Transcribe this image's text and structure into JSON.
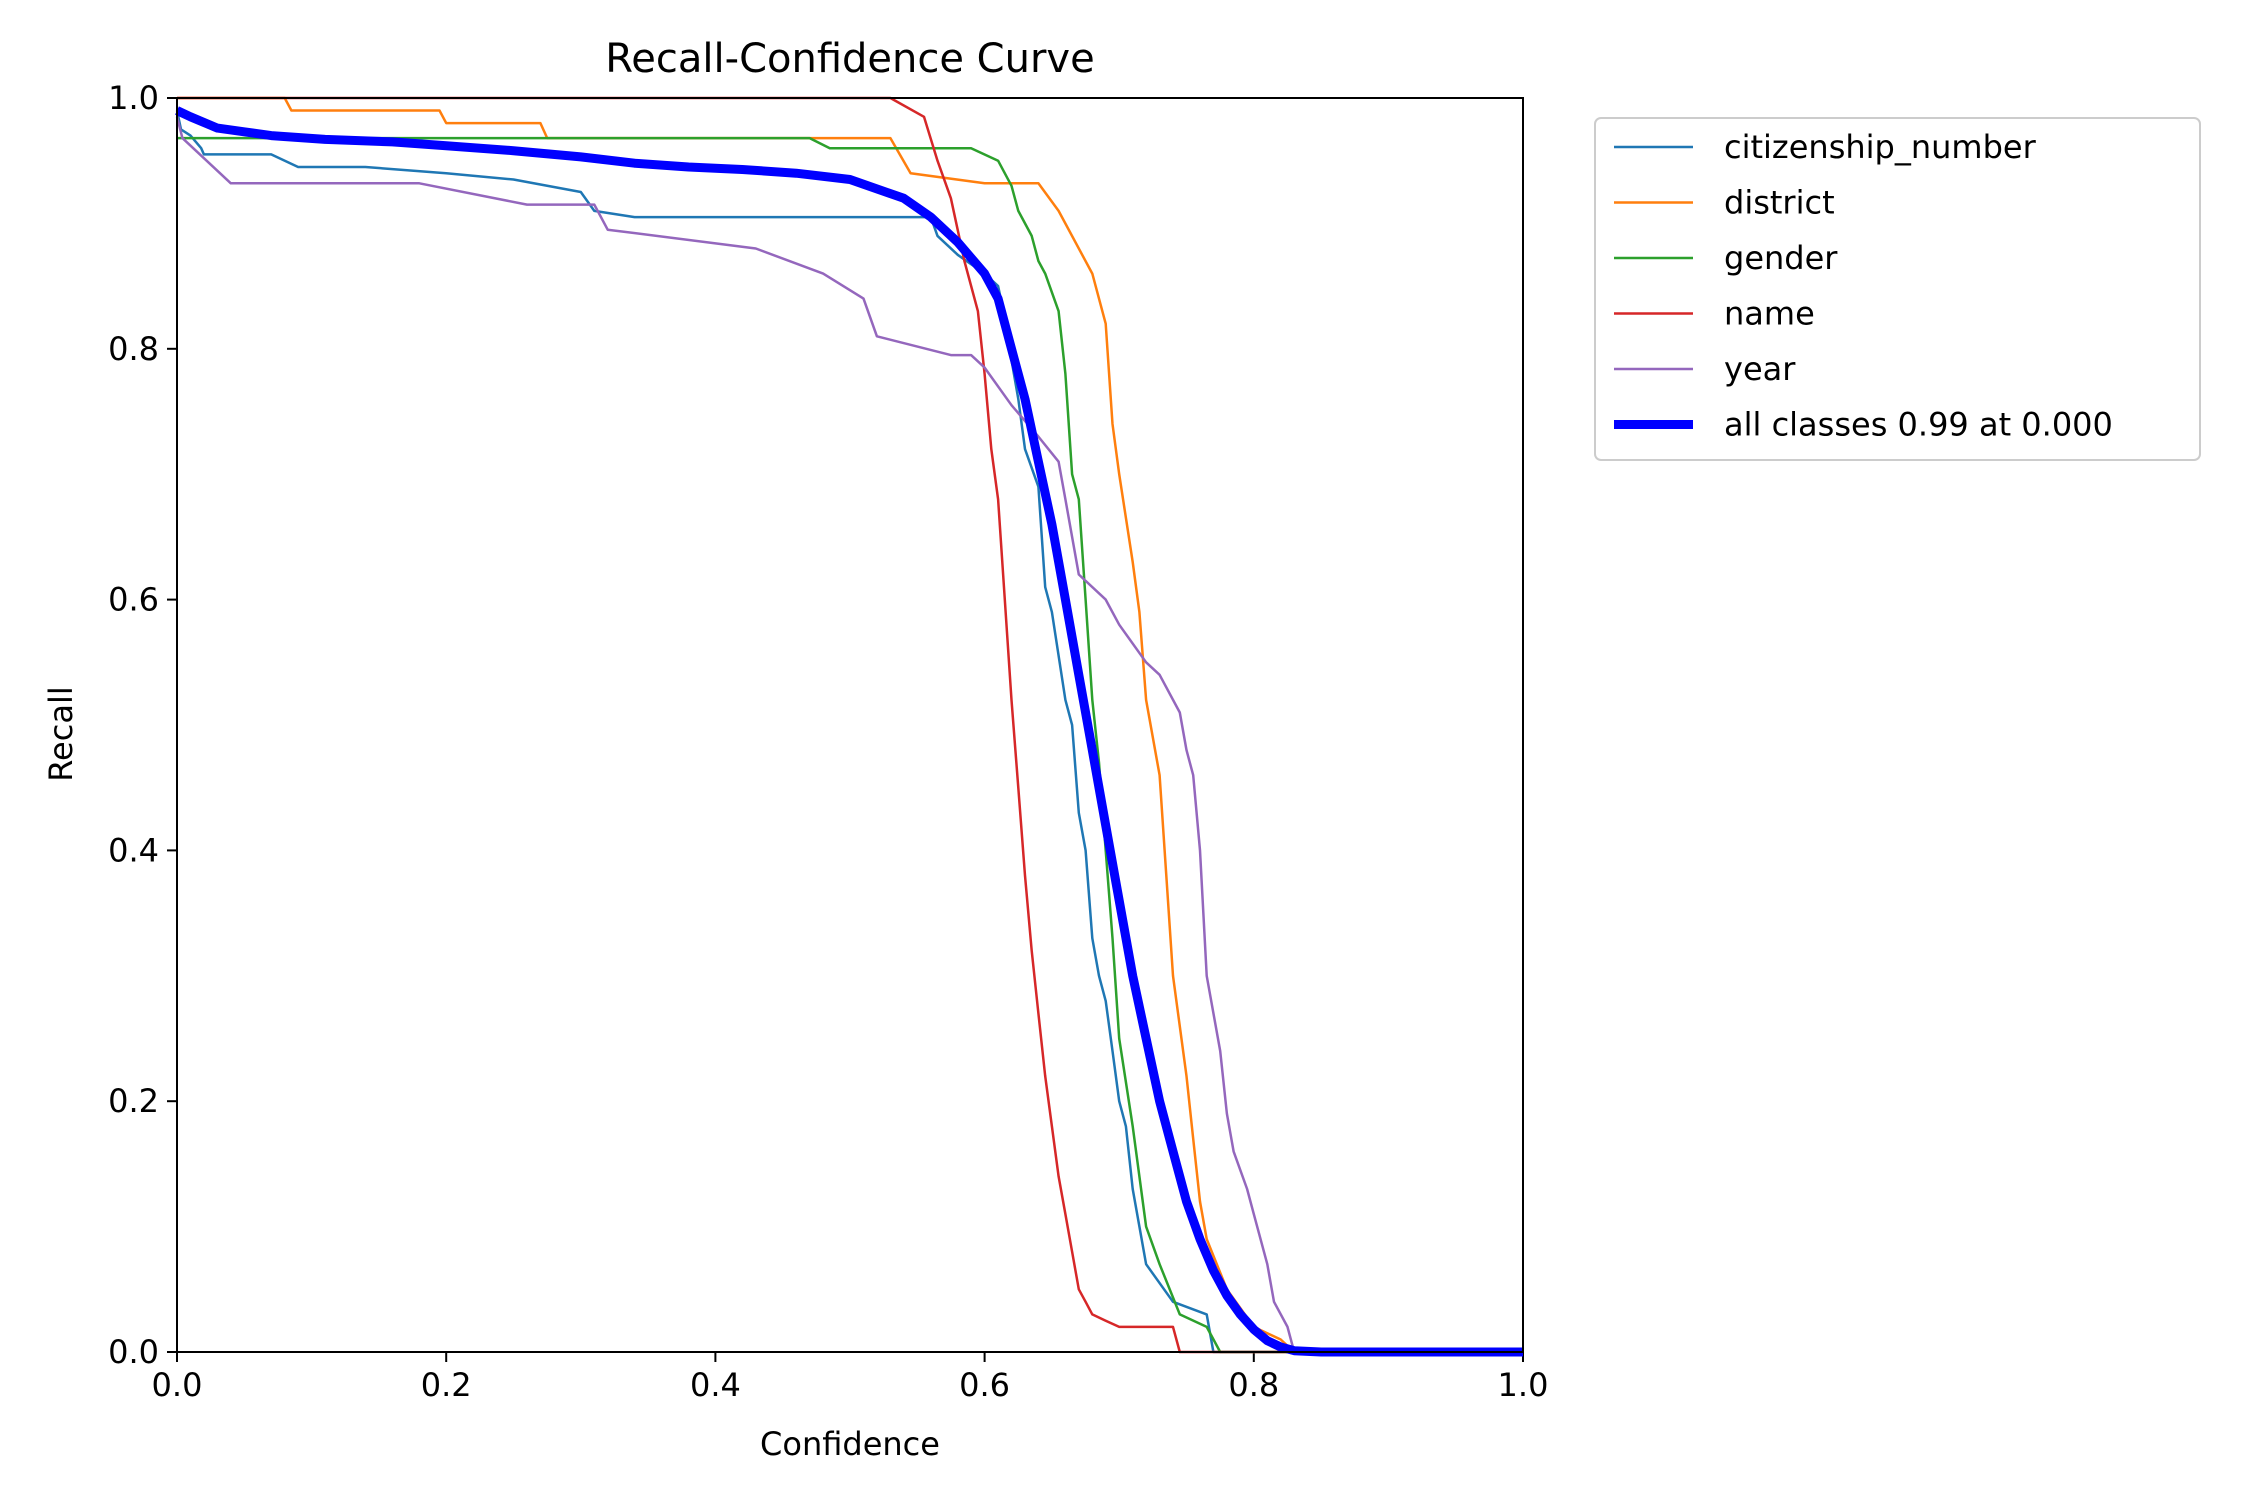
{
  "chart_data": {
    "type": "line",
    "title": "Recall-Confidence Curve",
    "xlabel": "Confidence",
    "ylabel": "Recall",
    "xlim": [
      0,
      1
    ],
    "ylim": [
      0,
      1
    ],
    "xticks": [
      "0.0",
      "0.2",
      "0.4",
      "0.6",
      "0.8",
      "1.0"
    ],
    "yticks": [
      "0.0",
      "0.2",
      "0.4",
      "0.6",
      "0.8",
      "1.0"
    ],
    "grid": false,
    "legend_position": "outside-top-right",
    "series": [
      {
        "name": "citizenship_number",
        "color": "#1f77b4",
        "width": "thin",
        "x": [
          0.0,
          0.003,
          0.01,
          0.018,
          0.02,
          0.07,
          0.09,
          0.14,
          0.2,
          0.25,
          0.3,
          0.31,
          0.34,
          0.56,
          0.565,
          0.58,
          0.6,
          0.61,
          0.612,
          0.625,
          0.63,
          0.64,
          0.645,
          0.65,
          0.66,
          0.665,
          0.67,
          0.675,
          0.68,
          0.685,
          0.69,
          0.695,
          0.7,
          0.705,
          0.71,
          0.72,
          0.74,
          0.765,
          0.77,
          1.0
        ],
        "y": [
          0.99,
          0.975,
          0.97,
          0.96,
          0.955,
          0.955,
          0.945,
          0.945,
          0.94,
          0.935,
          0.925,
          0.91,
          0.905,
          0.905,
          0.89,
          0.875,
          0.86,
          0.85,
          0.84,
          0.76,
          0.72,
          0.69,
          0.61,
          0.59,
          0.52,
          0.5,
          0.43,
          0.4,
          0.33,
          0.3,
          0.28,
          0.24,
          0.2,
          0.18,
          0.13,
          0.07,
          0.04,
          0.03,
          0.0,
          0.0
        ]
      },
      {
        "name": "district",
        "color": "#ff7f0e",
        "width": "thin",
        "x": [
          0.0,
          0.08,
          0.085,
          0.195,
          0.2,
          0.27,
          0.275,
          0.53,
          0.545,
          0.6,
          0.64,
          0.655,
          0.68,
          0.69,
          0.695,
          0.7,
          0.71,
          0.715,
          0.72,
          0.73,
          0.735,
          0.74,
          0.75,
          0.755,
          0.76,
          0.765,
          0.78,
          0.8,
          0.82,
          0.83,
          1.0
        ],
        "y": [
          1.0,
          1.0,
          0.99,
          0.99,
          0.98,
          0.98,
          0.968,
          0.968,
          0.94,
          0.932,
          0.932,
          0.91,
          0.86,
          0.82,
          0.74,
          0.7,
          0.63,
          0.59,
          0.52,
          0.46,
          0.38,
          0.3,
          0.22,
          0.17,
          0.12,
          0.09,
          0.05,
          0.02,
          0.01,
          0.0,
          0.0
        ]
      },
      {
        "name": "gender",
        "color": "#2ca02c",
        "width": "thin",
        "x": [
          0.0,
          0.47,
          0.485,
          0.59,
          0.61,
          0.62,
          0.625,
          0.635,
          0.64,
          0.645,
          0.655,
          0.66,
          0.665,
          0.67,
          0.675,
          0.68,
          0.685,
          0.69,
          0.695,
          0.7,
          0.71,
          0.715,
          0.72,
          0.73,
          0.745,
          0.765,
          0.775,
          1.0
        ],
        "y": [
          0.968,
          0.968,
          0.96,
          0.96,
          0.95,
          0.93,
          0.91,
          0.89,
          0.87,
          0.86,
          0.83,
          0.78,
          0.7,
          0.68,
          0.6,
          0.52,
          0.47,
          0.4,
          0.33,
          0.25,
          0.18,
          0.14,
          0.1,
          0.07,
          0.03,
          0.02,
          0.0,
          0.0
        ]
      },
      {
        "name": "name",
        "color": "#d62728",
        "width": "thin",
        "x": [
          0.0,
          0.53,
          0.555,
          0.565,
          0.575,
          0.585,
          0.595,
          0.6,
          0.605,
          0.61,
          0.615,
          0.62,
          0.625,
          0.63,
          0.635,
          0.64,
          0.645,
          0.65,
          0.655,
          0.66,
          0.665,
          0.67,
          0.675,
          0.68,
          0.69,
          0.7,
          0.74,
          0.745,
          1.0
        ],
        "y": [
          1.0,
          1.0,
          0.985,
          0.95,
          0.92,
          0.87,
          0.83,
          0.78,
          0.72,
          0.68,
          0.6,
          0.52,
          0.45,
          0.38,
          0.32,
          0.27,
          0.22,
          0.18,
          0.14,
          0.11,
          0.08,
          0.05,
          0.04,
          0.03,
          0.025,
          0.02,
          0.02,
          0.0,
          0.0
        ]
      },
      {
        "name": "year",
        "color": "#9467bd",
        "width": "thin",
        "x": [
          0.0,
          0.004,
          0.04,
          0.18,
          0.26,
          0.31,
          0.32,
          0.43,
          0.48,
          0.51,
          0.52,
          0.575,
          0.59,
          0.6,
          0.62,
          0.64,
          0.655,
          0.66,
          0.67,
          0.69,
          0.7,
          0.72,
          0.73,
          0.745,
          0.75,
          0.755,
          0.76,
          0.765,
          0.775,
          0.78,
          0.785,
          0.795,
          0.8,
          0.81,
          0.815,
          0.825,
          0.83,
          1.0
        ],
        "y": [
          0.985,
          0.968,
          0.932,
          0.932,
          0.915,
          0.915,
          0.895,
          0.88,
          0.86,
          0.84,
          0.81,
          0.795,
          0.795,
          0.785,
          0.755,
          0.73,
          0.71,
          0.68,
          0.62,
          0.6,
          0.58,
          0.55,
          0.54,
          0.51,
          0.48,
          0.46,
          0.4,
          0.3,
          0.24,
          0.19,
          0.16,
          0.13,
          0.11,
          0.07,
          0.04,
          0.02,
          0.0,
          0.0
        ]
      },
      {
        "name": "all classes 0.99 at 0.000",
        "color": "#0000ff",
        "width": "thick",
        "x": [
          0.0,
          0.01,
          0.03,
          0.07,
          0.11,
          0.16,
          0.2,
          0.25,
          0.3,
          0.34,
          0.38,
          0.42,
          0.46,
          0.5,
          0.54,
          0.56,
          0.58,
          0.6,
          0.61,
          0.62,
          0.63,
          0.64,
          0.65,
          0.66,
          0.67,
          0.68,
          0.69,
          0.7,
          0.71,
          0.72,
          0.73,
          0.74,
          0.75,
          0.76,
          0.77,
          0.78,
          0.79,
          0.8,
          0.81,
          0.82,
          0.83,
          0.85,
          1.0
        ],
        "y": [
          0.99,
          0.985,
          0.976,
          0.97,
          0.967,
          0.965,
          0.962,
          0.958,
          0.953,
          0.948,
          0.945,
          0.943,
          0.94,
          0.935,
          0.92,
          0.905,
          0.885,
          0.86,
          0.84,
          0.8,
          0.76,
          0.71,
          0.66,
          0.6,
          0.54,
          0.48,
          0.42,
          0.36,
          0.3,
          0.25,
          0.2,
          0.16,
          0.12,
          0.09,
          0.065,
          0.045,
          0.03,
          0.018,
          0.009,
          0.004,
          0.001,
          0.0,
          0.0
        ]
      }
    ]
  }
}
